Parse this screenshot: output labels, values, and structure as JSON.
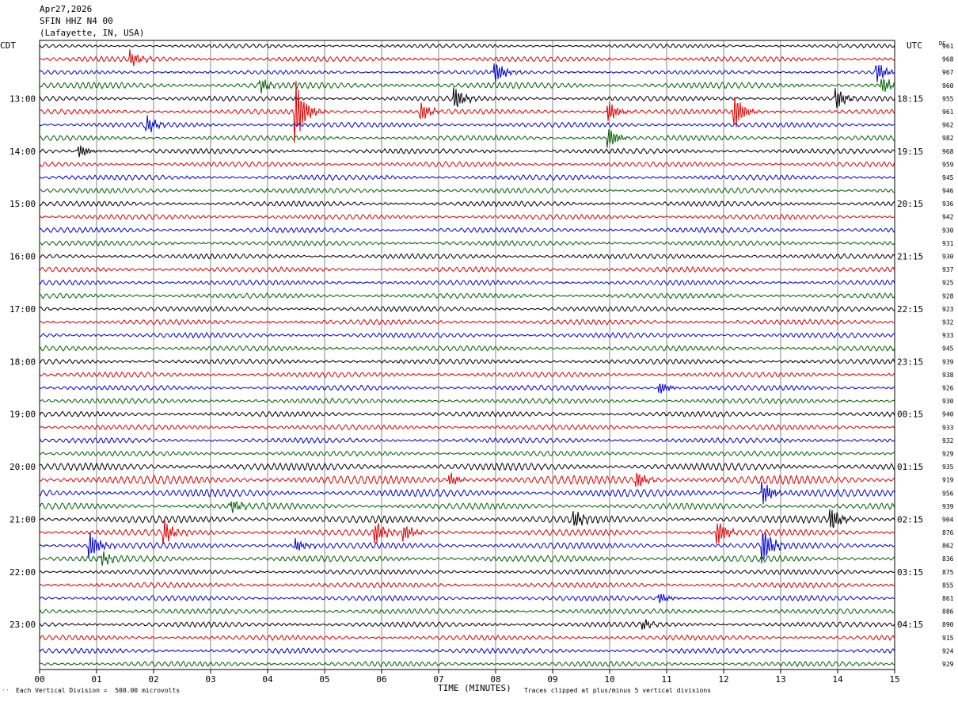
{
  "header": {
    "date": "Apr27,2026",
    "station": "SFIN HHZ N4 00",
    "location": "(Lafayette, IN, USA)"
  },
  "left_tz": "CDT",
  "right_tz": "UTC",
  "dc_label": "DC",
  "footer": {
    "scale_note": "Each Vertical Division =  500.00 microvolts",
    "clip_note": "Traces clipped at plus/minus 5 vertical divisions",
    "corner_mark": "′′"
  },
  "colors": {
    "black": "#000000",
    "red": "#e00000",
    "blue": "#0000d0",
    "green": "#006000",
    "grid": "#000000"
  },
  "chart_data": {
    "type": "line",
    "title": "SFIN HHZ N4 00",
    "xlabel": "TIME (MINUTES)",
    "ylabel": "",
    "x_ticks": [
      "00",
      "01",
      "02",
      "03",
      "04",
      "05",
      "06",
      "07",
      "08",
      "09",
      "10",
      "11",
      "12",
      "13",
      "14",
      "15"
    ],
    "xlim": [
      0,
      15
    ],
    "left_hour_labels": [
      "13:00",
      "14:00",
      "15:00",
      "16:00",
      "17:00",
      "18:00",
      "19:00",
      "20:00",
      "21:00",
      "22:00",
      "23:00"
    ],
    "right_hour_labels": [
      "18:15",
      "19:15",
      "20:15",
      "21:15",
      "22:15",
      "23:15",
      "00:15",
      "01:15",
      "02:15",
      "03:15",
      "04:15"
    ],
    "hour_label_first_trace": 4,
    "traces_per_hour": 4,
    "color_cycle": [
      "black",
      "red",
      "blue",
      "green"
    ],
    "dc_offsets": [
      961,
      968,
      967,
      960,
      955,
      961,
      962,
      982,
      968,
      959,
      945,
      946,
      936,
      942,
      930,
      931,
      930,
      937,
      925,
      928,
      923,
      932,
      933,
      945,
      939,
      938,
      926,
      930,
      940,
      933,
      932,
      929,
      935,
      919,
      956,
      939,
      904,
      876,
      862,
      836,
      875,
      855,
      861,
      886,
      890,
      915,
      924,
      929
    ],
    "amplitude_profile": [
      3,
      4,
      3,
      5,
      4,
      4,
      4,
      4,
      4,
      4,
      4,
      4,
      4,
      4,
      4,
      4,
      4,
      4,
      4,
      4,
      4,
      4,
      4,
      4,
      4,
      4,
      4,
      4,
      4,
      4,
      4,
      4,
      6,
      7,
      6,
      5,
      6,
      5,
      5,
      5,
      4,
      4,
      4,
      4,
      4,
      4,
      4,
      4
    ],
    "events": [
      {
        "trace": 1,
        "minute": 1.6,
        "amp": 10
      },
      {
        "trace": 2,
        "minute": 8.0,
        "amp": 14
      },
      {
        "trace": 2,
        "minute": 14.7,
        "amp": 12
      },
      {
        "trace": 3,
        "minute": 3.9,
        "amp": 8
      },
      {
        "trace": 3,
        "minute": 14.8,
        "amp": 10
      },
      {
        "trace": 4,
        "minute": 7.3,
        "amp": 14
      },
      {
        "trace": 4,
        "minute": 14.0,
        "amp": 12
      },
      {
        "trace": 5,
        "minute": 4.5,
        "amp": 40
      },
      {
        "trace": 5,
        "minute": 6.7,
        "amp": 12
      },
      {
        "trace": 5,
        "minute": 10.0,
        "amp": 12
      },
      {
        "trace": 5,
        "minute": 12.2,
        "amp": 22
      },
      {
        "trace": 6,
        "minute": 1.9,
        "amp": 10
      },
      {
        "trace": 7,
        "minute": 10.0,
        "amp": 12
      },
      {
        "trace": 8,
        "minute": 0.7,
        "amp": 8
      },
      {
        "trace": 26,
        "minute": 10.9,
        "amp": 7
      },
      {
        "trace": 33,
        "minute": 7.2,
        "amp": 8
      },
      {
        "trace": 33,
        "minute": 10.5,
        "amp": 10
      },
      {
        "trace": 34,
        "minute": 12.7,
        "amp": 14
      },
      {
        "trace": 35,
        "minute": 3.4,
        "amp": 7
      },
      {
        "trace": 36,
        "minute": 9.4,
        "amp": 10
      },
      {
        "trace": 36,
        "minute": 13.9,
        "amp": 14
      },
      {
        "trace": 37,
        "minute": 2.2,
        "amp": 14
      },
      {
        "trace": 37,
        "minute": 5.9,
        "amp": 14
      },
      {
        "trace": 37,
        "minute": 6.4,
        "amp": 10
      },
      {
        "trace": 37,
        "minute": 11.9,
        "amp": 16
      },
      {
        "trace": 38,
        "minute": 0.9,
        "amp": 16
      },
      {
        "trace": 38,
        "minute": 4.5,
        "amp": 8
      },
      {
        "trace": 38,
        "minute": 12.7,
        "amp": 22
      },
      {
        "trace": 39,
        "minute": 1.1,
        "amp": 8
      },
      {
        "trace": 42,
        "minute": 10.9,
        "amp": 6
      },
      {
        "trace": 44,
        "minute": 10.6,
        "amp": 6
      }
    ]
  }
}
